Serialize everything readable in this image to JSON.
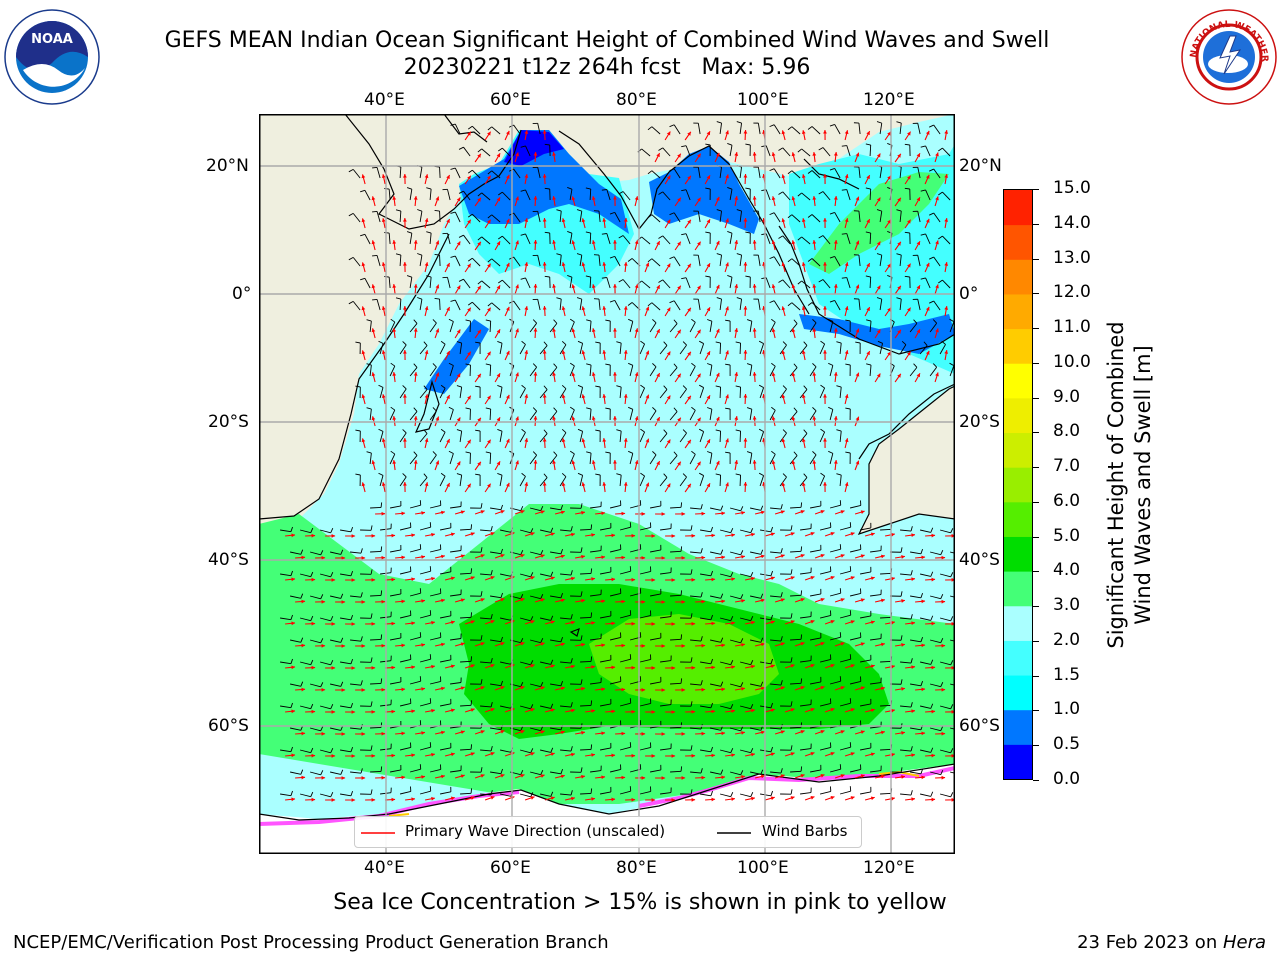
{
  "header": {
    "title_line1": "GEFS MEAN Indian Ocean Significant Height of Combined Wind Waves and Swell",
    "title_line2": "20230221 t12z 264h fcst   Max: 5.96"
  },
  "logos": {
    "left": {
      "text": "NOAA",
      "icon": "noaa-logo"
    },
    "right": {
      "text": "NATIONAL WEATHER SERVICE",
      "icon": "nws-logo"
    }
  },
  "map": {
    "lon_labels": [
      "40°E",
      "60°E",
      "80°E",
      "100°E",
      "120°E"
    ],
    "lat_labels": [
      "20°N",
      "0°",
      "20°S",
      "40°S",
      "60°S"
    ],
    "colors": {
      "land": "#efefdf",
      "ocean_calm": "#aaffff",
      "ocean_mid": "#44ff77",
      "ocean_high": "#00dd00",
      "ocean_peak": "#77ee00"
    }
  },
  "colorbar": {
    "label_line1": "Significant Height of Combined",
    "label_line2": "Wind Waves and Swell [m]",
    "ticks": [
      "15.0",
      "14.0",
      "13.0",
      "12.0",
      "11.0",
      "10.0",
      "9.0",
      "8.0",
      "7.0",
      "6.0",
      "5.0",
      "4.0",
      "3.0",
      "2.0",
      "1.5",
      "1.0",
      "0.5",
      "0.0"
    ],
    "colors": [
      "#0000ff",
      "#0077ff",
      "#00ffff",
      "#44ffff",
      "#aaffff",
      "#44ff77",
      "#00dd00",
      "#55ee00",
      "#99ee00",
      "#ccee00",
      "#eeee00",
      "#ffff00",
      "#ffcc00",
      "#ffaa00",
      "#ff8800",
      "#ff5500",
      "#ff2200"
    ]
  },
  "legend": {
    "wave_label": "Primary Wave Direction (unscaled)",
    "wind_label": "Wind Barbs",
    "wave_color": "#ff0000",
    "wind_color": "#000000"
  },
  "subtitle": "Sea Ice Concentration > 15% is shown in pink to yellow",
  "footer": {
    "left": "NCEP/EMC/Verification Post Processing Product Generation Branch",
    "right_date": "23 Feb 2023 on ",
    "right_host": "Hera"
  }
}
